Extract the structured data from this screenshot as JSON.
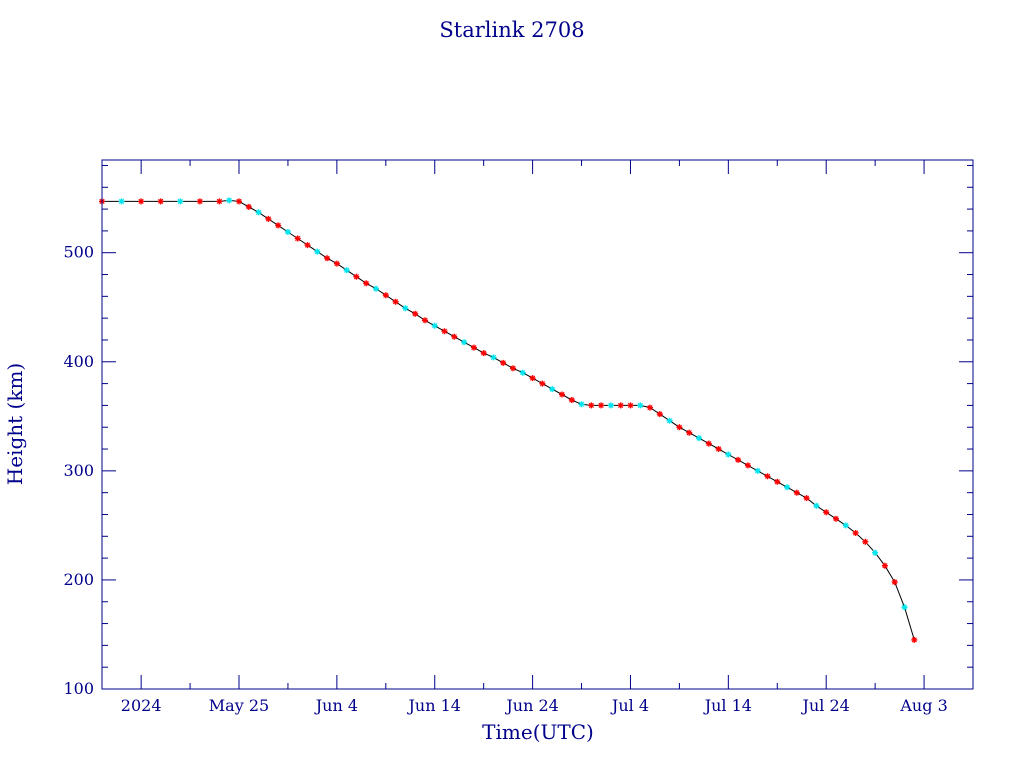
{
  "chart_data": {
    "type": "scatter",
    "title": "Starlink 2708",
    "xlabel": "Time(UTC)",
    "ylabel": "Height (km)",
    "xlim": [
      "2024-05-11",
      "2024-08-08"
    ],
    "ylim": [
      100,
      585
    ],
    "x_ticks": [
      {
        "date": "2024-05-15",
        "label": "2024"
      },
      {
        "date": "2024-05-25",
        "label": "May 25"
      },
      {
        "date": "2024-06-04",
        "label": "Jun  4"
      },
      {
        "date": "2024-06-14",
        "label": "Jun 14"
      },
      {
        "date": "2024-06-24",
        "label": "Jun 24"
      },
      {
        "date": "2024-07-04",
        "label": "Jul  4"
      },
      {
        "date": "2024-07-14",
        "label": "Jul 14"
      },
      {
        "date": "2024-07-24",
        "label": "Jul 24"
      },
      {
        "date": "2024-08-03",
        "label": "Aug  3"
      }
    ],
    "y_ticks": [
      100,
      200,
      300,
      400,
      500
    ],
    "colors": {
      "axis": "#00008b",
      "line": "#000000",
      "marker_a": "#ff0000",
      "marker_b": "#00e5ee"
    },
    "series": [
      {
        "values": [
          [
            "2024-05-11",
            547
          ],
          [
            "2024-05-13",
            547
          ],
          [
            "2024-05-15",
            547
          ],
          [
            "2024-05-17",
            547
          ],
          [
            "2024-05-19",
            547
          ],
          [
            "2024-05-21",
            547
          ],
          [
            "2024-05-23",
            547
          ],
          [
            "2024-05-24",
            548
          ],
          [
            "2024-05-25",
            547
          ],
          [
            "2024-05-26",
            542
          ],
          [
            "2024-05-27",
            537
          ],
          [
            "2024-05-28",
            531
          ],
          [
            "2024-05-29",
            525
          ],
          [
            "2024-05-30",
            519
          ],
          [
            "2024-05-31",
            513
          ],
          [
            "2024-06-01",
            507
          ],
          [
            "2024-06-02",
            501
          ],
          [
            "2024-06-03",
            495
          ],
          [
            "2024-06-04",
            490
          ],
          [
            "2024-06-05",
            484
          ],
          [
            "2024-06-06",
            478
          ],
          [
            "2024-06-07",
            472
          ],
          [
            "2024-06-08",
            467
          ],
          [
            "2024-06-09",
            461
          ],
          [
            "2024-06-10",
            455
          ],
          [
            "2024-06-11",
            449
          ],
          [
            "2024-06-12",
            444
          ],
          [
            "2024-06-13",
            438
          ],
          [
            "2024-06-14",
            433
          ],
          [
            "2024-06-15",
            428
          ],
          [
            "2024-06-16",
            423
          ],
          [
            "2024-06-17",
            418
          ],
          [
            "2024-06-18",
            413
          ],
          [
            "2024-06-19",
            408
          ],
          [
            "2024-06-20",
            404
          ],
          [
            "2024-06-21",
            399
          ],
          [
            "2024-06-22",
            394
          ],
          [
            "2024-06-23",
            390
          ],
          [
            "2024-06-24",
            385
          ],
          [
            "2024-06-25",
            380
          ],
          [
            "2024-06-26",
            375
          ],
          [
            "2024-06-27",
            370
          ],
          [
            "2024-06-28",
            365
          ],
          [
            "2024-06-29",
            361
          ],
          [
            "2024-06-30",
            360
          ],
          [
            "2024-07-01",
            360
          ],
          [
            "2024-07-02",
            360
          ],
          [
            "2024-07-03",
            360
          ],
          [
            "2024-07-04",
            360
          ],
          [
            "2024-07-05",
            360
          ],
          [
            "2024-07-06",
            358
          ],
          [
            "2024-07-07",
            352
          ],
          [
            "2024-07-08",
            346
          ],
          [
            "2024-07-09",
            340
          ],
          [
            "2024-07-10",
            335
          ],
          [
            "2024-07-11",
            330
          ],
          [
            "2024-07-12",
            325
          ],
          [
            "2024-07-13",
            320
          ],
          [
            "2024-07-14",
            315
          ],
          [
            "2024-07-15",
            310
          ],
          [
            "2024-07-16",
            305
          ],
          [
            "2024-07-17",
            300
          ],
          [
            "2024-07-18",
            295
          ],
          [
            "2024-07-19",
            290
          ],
          [
            "2024-07-20",
            285
          ],
          [
            "2024-07-21",
            280
          ],
          [
            "2024-07-22",
            275
          ],
          [
            "2024-07-23",
            268
          ],
          [
            "2024-07-24",
            262
          ],
          [
            "2024-07-25",
            256
          ],
          [
            "2024-07-26",
            250
          ],
          [
            "2024-07-27",
            243
          ],
          [
            "2024-07-28",
            235
          ],
          [
            "2024-07-29",
            225
          ],
          [
            "2024-07-30",
            213
          ],
          [
            "2024-07-31",
            198
          ],
          [
            "2024-08-01",
            175
          ],
          [
            "2024-08-02",
            145
          ]
        ]
      }
    ]
  }
}
